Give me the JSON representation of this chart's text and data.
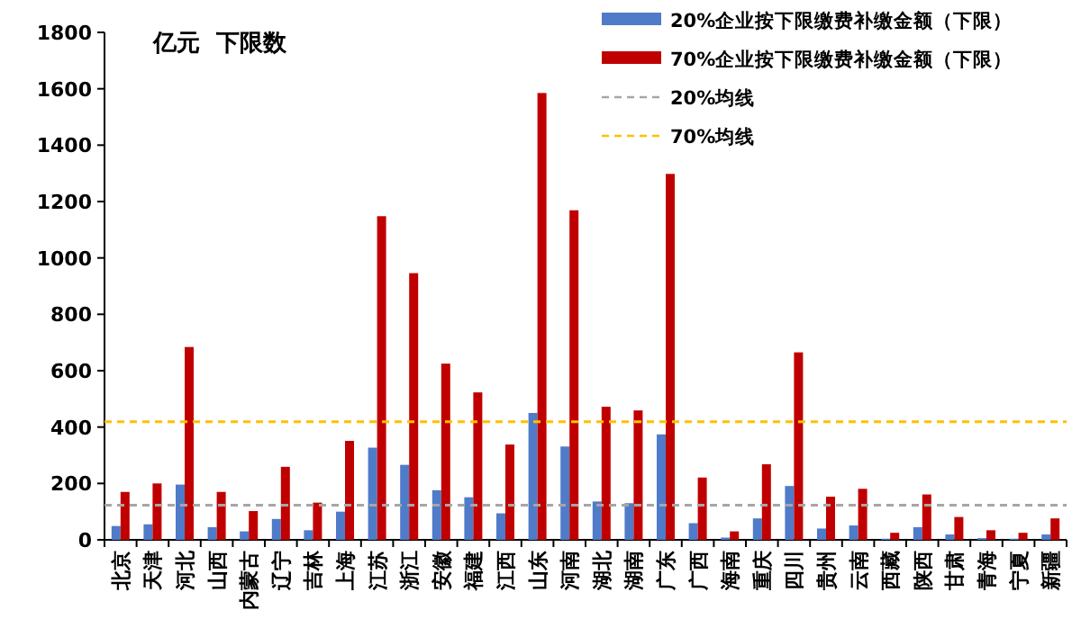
{
  "chart_data": {
    "type": "bar",
    "title": "亿元  下限数",
    "categories": [
      "北京",
      "天津",
      "河北",
      "山西",
      "内蒙古",
      "辽宁",
      "吉林",
      "上海",
      "江苏",
      "浙江",
      "安徽",
      "福建",
      "江西",
      "山东",
      "河南",
      "湖北",
      "湖南",
      "广东",
      "广西",
      "海南",
      "重庆",
      "四川",
      "贵州",
      "云南",
      "西藏",
      "陕西",
      "甘肃",
      "青海",
      "宁夏",
      "新疆"
    ],
    "series": [
      {
        "name": "20%企业按下限缴费补缴金额（下限）",
        "color": "#4f7bc8",
        "values": [
          49,
          55,
          196,
          45,
          30,
          74,
          34,
          100,
          327,
          266,
          176,
          151,
          94,
          450,
          331,
          136,
          130,
          374,
          59,
          8,
          76,
          191,
          40,
          51,
          4,
          45,
          19,
          6,
          4,
          19
        ]
      },
      {
        "name": "70%企业按下限缴费补缴金额（下限）",
        "color": "#c00000",
        "values": [
          170,
          200,
          684,
          170,
          102,
          259,
          132,
          351,
          1148,
          946,
          625,
          523,
          338,
          1585,
          1169,
          472,
          459,
          1298,
          221,
          30,
          268,
          665,
          153,
          181,
          25,
          161,
          81,
          34,
          25,
          76
        ]
      }
    ],
    "ref_lines": [
      {
        "axis": "y",
        "value": 123,
        "label": "20%均线",
        "color": "#a6a6a6",
        "line_style": "dashed"
      },
      {
        "axis": "y",
        "value": 419,
        "label": "70%均线",
        "color": "#ffc000",
        "line_style": "dashed"
      }
    ],
    "ylim": [
      0,
      1800
    ],
    "yticks": [
      0,
      200,
      400,
      600,
      800,
      1000,
      1200,
      1400,
      1600,
      1800
    ],
    "grid": false,
    "legend": "top right"
  }
}
